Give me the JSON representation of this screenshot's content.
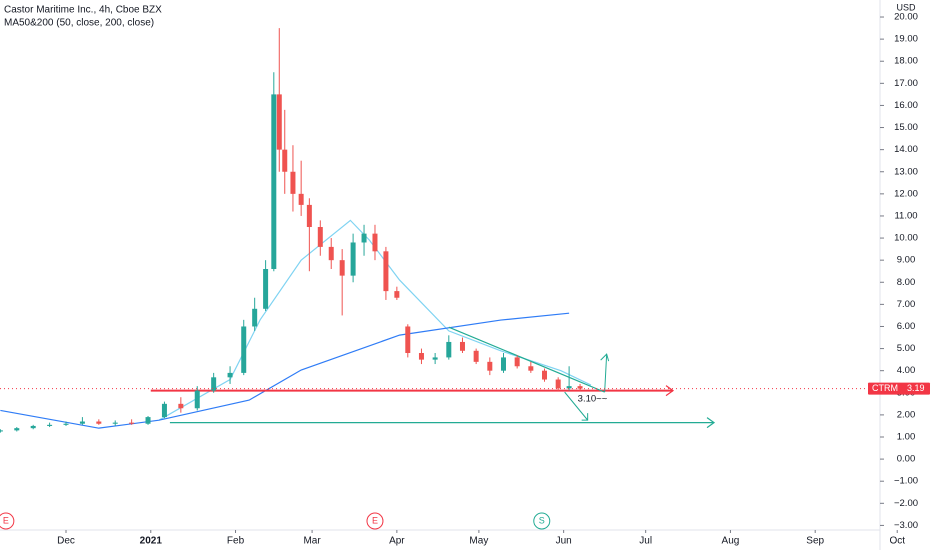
{
  "chart_data": {
    "type": "candlestick",
    "title": "Castor Maritime Inc., 4h, Cboe BZX",
    "subtitle": "MA50&200 (50, close, 200, close)",
    "currency": "USD",
    "colors": {
      "up": "#26a69a",
      "down": "#ef5350"
    },
    "x": [
      6,
      12,
      18,
      24,
      30,
      36,
      42,
      48,
      54,
      60,
      66,
      72,
      78,
      84,
      90,
      95,
      99,
      103,
      106,
      108,
      110,
      113,
      116,
      119,
      123,
      127,
      131,
      135,
      139,
      143,
      147,
      151,
      155,
      160,
      165,
      170,
      175,
      180,
      185,
      190,
      195,
      200,
      205,
      210,
      214,
      218
    ],
    "open": [
      1.25,
      1.3,
      1.4,
      1.5,
      1.55,
      1.6,
      1.7,
      1.6,
      1.65,
      1.6,
      1.9,
      2.5,
      2.3,
      3.1,
      3.7,
      3.9,
      6.0,
      6.8,
      8.6,
      16.5,
      14.0,
      13.0,
      12.0,
      11.5,
      10.5,
      9.6,
      9.0,
      8.3,
      9.8,
      10.2,
      9.4,
      7.6,
      6.0,
      4.8,
      4.5,
      4.6,
      5.3,
      4.9,
      4.4,
      4.0,
      4.6,
      4.2,
      4.0,
      3.6,
      3.2,
      3.3
    ],
    "high": [
      1.35,
      1.45,
      1.55,
      1.65,
      1.7,
      1.9,
      1.8,
      1.75,
      1.8,
      1.95,
      2.6,
      2.8,
      3.3,
      3.9,
      4.2,
      6.3,
      7.3,
      9.0,
      17.5,
      19.5,
      15.8,
      14.2,
      13.5,
      11.8,
      10.8,
      10.0,
      9.5,
      10.2,
      10.6,
      10.6,
      9.6,
      7.8,
      6.1,
      5.0,
      4.8,
      5.6,
      5.5,
      5.0,
      4.6,
      4.8,
      4.7,
      4.4,
      4.1,
      3.7,
      4.2,
      3.4
    ],
    "low": [
      1.2,
      1.25,
      1.35,
      1.45,
      1.5,
      1.55,
      1.55,
      1.5,
      1.55,
      1.55,
      1.85,
      2.1,
      2.2,
      3.0,
      3.4,
      3.8,
      5.8,
      6.7,
      8.5,
      13.0,
      12.0,
      11.2,
      11.0,
      8.5,
      9.2,
      8.6,
      6.5,
      8.0,
      9.2,
      9.0,
      7.2,
      7.2,
      4.6,
      4.3,
      4.3,
      4.5,
      4.8,
      4.3,
      3.8,
      3.9,
      4.1,
      3.9,
      3.5,
      3.1,
      3.1,
      3.1
    ],
    "close": [
      1.3,
      1.4,
      1.5,
      1.55,
      1.6,
      1.7,
      1.6,
      1.65,
      1.6,
      1.9,
      2.5,
      2.3,
      3.1,
      3.7,
      3.9,
      6.0,
      6.8,
      8.6,
      16.5,
      14.0,
      13.0,
      12.0,
      11.5,
      10.5,
      9.6,
      9.0,
      8.3,
      9.8,
      10.2,
      9.4,
      7.6,
      7.3,
      4.8,
      4.5,
      4.6,
      5.3,
      4.9,
      4.4,
      4.0,
      4.6,
      4.2,
      4.0,
      3.6,
      3.2,
      3.3,
      3.19
    ],
    "ma_lines": [
      {
        "color": "#7fd3f2",
        "x": [
          64,
          90,
          101,
          116,
          134,
          141,
          152,
          170,
          189,
          211,
          222
        ],
        "values": [
          1.76,
          3.6,
          6.3,
          9.0,
          10.8,
          9.9,
          8.1,
          5.8,
          4.9,
          4.0,
          3.35
        ]
      },
      {
        "color": "#2f7cf6",
        "x": [
          6,
          42,
          64,
          97,
          116,
          152,
          189,
          214
        ],
        "values": [
          2.2,
          1.4,
          1.76,
          2.67,
          4.03,
          5.61,
          6.29,
          6.6
        ]
      }
    ],
    "levels": [
      {
        "value": 3.1,
        "color": "#f23645",
        "x": [
          61,
          252
        ]
      },
      {
        "value": 1.65,
        "color": "#22ab94",
        "x": [
          68,
          267
        ]
      }
    ],
    "trendline": {
      "color": "#22ab94",
      "x": [
        170,
        227
      ],
      "values": [
        5.97,
        3.03
      ]
    },
    "annotation": "3.10~~",
    "last_price": {
      "symbol": "CTRM",
      "value": 3.19
    },
    "events": [
      "E",
      "E",
      "S"
    ],
    "event_x": [
      8,
      143,
      204
    ],
    "xlim": [
      5.86,
      327.7
    ],
    "ylim": [
      -3.66,
      20.77
    ],
    "xticks": [
      {
        "value": 30,
        "label": "Dec"
      },
      {
        "value": 61,
        "label": "2021"
      },
      {
        "value": 92,
        "label": "Feb"
      },
      {
        "value": 120,
        "label": "Mar"
      },
      {
        "value": 151,
        "label": "Apr"
      },
      {
        "value": 181,
        "label": "May"
      },
      {
        "value": 212,
        "label": "Jun"
      },
      {
        "value": 242,
        "label": "Jul"
      },
      {
        "value": 273,
        "label": "Aug"
      },
      {
        "value": 304,
        "label": "Sep"
      },
      {
        "value": 334,
        "label": "Oct"
      }
    ],
    "yticks": [
      {
        "value": 20,
        "label": "20.00"
      },
      {
        "value": 19,
        "label": "19.00"
      },
      {
        "value": 18,
        "label": "18.00"
      },
      {
        "value": 17,
        "label": "17.00"
      },
      {
        "value": 16,
        "label": "16.00"
      },
      {
        "value": 15,
        "label": "15.00"
      },
      {
        "value": 14,
        "label": "14.00"
      },
      {
        "value": 13,
        "label": "13.00"
      },
      {
        "value": 12,
        "label": "12.00"
      },
      {
        "value": 11,
        "label": "11.00"
      },
      {
        "value": 10,
        "label": "10.00"
      },
      {
        "value": 9,
        "label": "9.00"
      },
      {
        "value": 8,
        "label": "8.00"
      },
      {
        "value": 7,
        "label": "7.00"
      },
      {
        "value": 6,
        "label": "6.00"
      },
      {
        "value": 5,
        "label": "5.00"
      },
      {
        "value": 4,
        "label": "4.00"
      },
      {
        "value": 3,
        "label": "3.00"
      },
      {
        "value": 2,
        "label": "2.00"
      },
      {
        "value": 1,
        "label": "1.00"
      },
      {
        "value": 0,
        "label": "0.00"
      },
      {
        "value": -1,
        "label": "−1.00"
      },
      {
        "value": -2,
        "label": "−2.00"
      },
      {
        "value": -3,
        "label": "−3.00"
      }
    ]
  }
}
